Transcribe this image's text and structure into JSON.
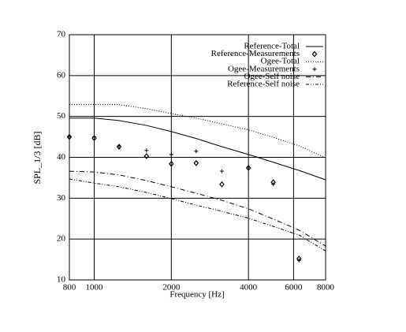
{
  "chart_data": {
    "type": "line",
    "xlabel": "Frequency [Hz]",
    "ylabel": "SPL_1/3 [dB]",
    "x": [
      800,
      1000,
      1250,
      1600,
      2000,
      2500,
      3150,
      4000,
      5000,
      6300,
      8000
    ],
    "xscale": "log",
    "xlim": [
      800,
      8000
    ],
    "xticks": [
      800,
      1000,
      2000,
      4000,
      6000,
      8000
    ],
    "ylim": [
      10,
      70
    ],
    "yticks": [
      10,
      20,
      30,
      40,
      50,
      60,
      70
    ],
    "grid": true,
    "legend": "upper right",
    "series": [
      {
        "name": "Reference-Total",
        "color": "#000000",
        "mark": "line",
        "style": "solid",
        "values": [
          49.6,
          49.6,
          49.0,
          47.8,
          46.3,
          44.6,
          42.6,
          40.7,
          38.8,
          36.8,
          34.5
        ]
      },
      {
        "name": "Reference-Measurements",
        "color": "#000000",
        "mark": "diamond",
        "values": [
          45.0,
          44.7,
          42.6,
          40.3,
          38.4,
          38.6,
          33.4,
          37.4,
          33.9,
          15.2,
          null
        ]
      },
      {
        "name": "Ogee-Total",
        "color": "#000000",
        "mark": "line",
        "style": "dotted",
        "values": [
          52.9,
          52.9,
          52.9,
          51.9,
          50.7,
          49.6,
          48.2,
          46.7,
          44.9,
          42.8,
          39.9
        ]
      },
      {
        "name": "Ogee-Measurements",
        "color": "#000000",
        "mark": "plus",
        "values": [
          45.1,
          45.0,
          42.8,
          41.7,
          40.7,
          41.5,
          36.6,
          37.6,
          33.4,
          14.8,
          null
        ]
      },
      {
        "name": "Ogee-Self noise",
        "color": "#000000",
        "mark": "line",
        "style": "dash-dot",
        "values": [
          36.6,
          36.4,
          35.7,
          34.3,
          32.8,
          31.2,
          29.5,
          27.4,
          24.9,
          22.2,
          18.3
        ]
      },
      {
        "name": "Reference-Self noise",
        "color": "#000000",
        "mark": "line",
        "style": "dash-dot-dot",
        "values": [
          34.7,
          33.7,
          32.8,
          31.4,
          29.9,
          28.3,
          26.8,
          25.1,
          23.1,
          21.0,
          17.1
        ]
      }
    ]
  }
}
